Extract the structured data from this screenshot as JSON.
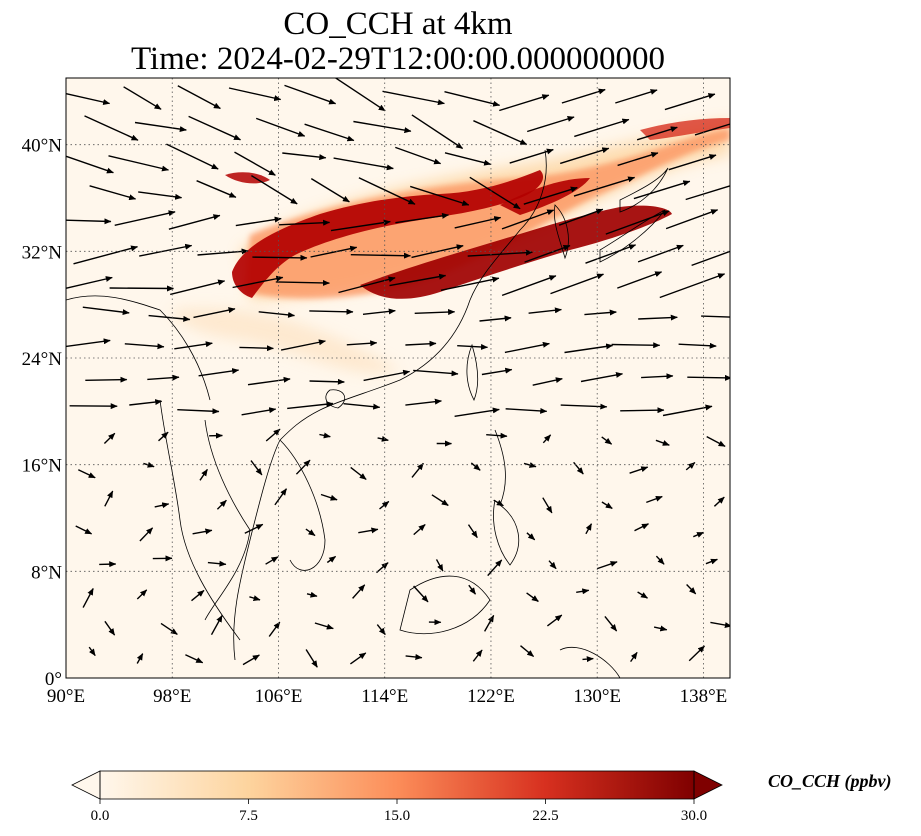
{
  "title": {
    "line1": "CO_CCH at 4km",
    "line2": "Time: 2024-02-29T12:00:00.000000000"
  },
  "map": {
    "lon_range": [
      90,
      140
    ],
    "lat_range": [
      0,
      45
    ],
    "lon_ticks": [
      "90°E",
      "98°E",
      "106°E",
      "114°E",
      "122°E",
      "130°E",
      "138°E"
    ],
    "lon_tick_values": [
      90,
      98,
      106,
      114,
      122,
      130,
      138
    ],
    "lat_ticks": [
      "0°",
      "8°N",
      "16°N",
      "24°N",
      "32°N",
      "40°N"
    ],
    "lat_tick_values": [
      0,
      8,
      16,
      24,
      32,
      40
    ],
    "gridlines": true,
    "coastlines": true,
    "wind_vectors": true
  },
  "colorbar": {
    "label": "CO_CCH (ppbv)",
    "ticks": [
      "0.0",
      "7.5",
      "15.0",
      "22.5",
      "30.0"
    ],
    "tick_values": [
      0,
      7.5,
      15,
      22.5,
      30
    ],
    "range": [
      0,
      30
    ],
    "extend": "both",
    "colormap": "OrRd",
    "colors": [
      "#fff7ec",
      "#fdd49e",
      "#fc8d59",
      "#d7301f",
      "#7f0000"
    ]
  }
}
